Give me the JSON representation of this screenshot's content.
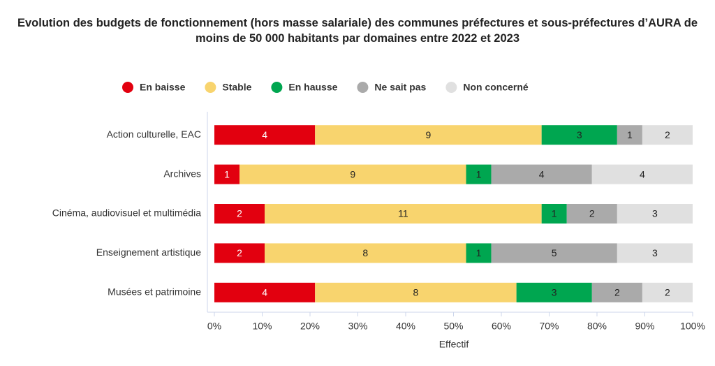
{
  "chart_data": {
    "type": "bar",
    "orientation": "horizontal",
    "stacking": "percent",
    "title": "Evolution des budgets de fonctionnement (hors masse salariale) des communes préfectures et sous-préfectures d’AURA de moins de 50 000 habitants par domaines entre 2022 et 2023",
    "x_label": "Effectif",
    "categories": [
      "Action culturelle, EAC",
      "Archives",
      "Cinéma, audiovisuel et multimédia",
      "Enseignement artistique",
      "Musées et patrimoine"
    ],
    "series": [
      {
        "name": "En baisse",
        "color": "#e2000f",
        "values": [
          4,
          1,
          2,
          2,
          4
        ]
      },
      {
        "name": "Stable",
        "color": "#f8d46e",
        "values": [
          9,
          9,
          11,
          8,
          8
        ]
      },
      {
        "name": "En hausse",
        "color": "#00a650",
        "values": [
          3,
          1,
          1,
          1,
          3
        ]
      },
      {
        "name": "Ne sait pas",
        "color": "#aaaaaa",
        "values": [
          1,
          4,
          2,
          5,
          2
        ]
      },
      {
        "name": "Non concerné",
        "color": "#e0e0e0",
        "values": [
          2,
          4,
          3,
          3,
          2
        ]
      }
    ],
    "xlim": [
      0,
      100
    ],
    "xticks": [
      {
        "value": 0,
        "label": "0%"
      },
      {
        "value": 10,
        "label": "10%"
      },
      {
        "value": 20,
        "label": "20%"
      },
      {
        "value": 30,
        "label": "30%"
      },
      {
        "value": 40,
        "label": "40%"
      },
      {
        "value": 50,
        "label": "50%"
      },
      {
        "value": 60,
        "label": "60%"
      },
      {
        "value": 70,
        "label": "70%"
      },
      {
        "value": 80,
        "label": "80%"
      },
      {
        "value": 90,
        "label": "90%"
      },
      {
        "value": 100,
        "label": "100%"
      }
    ],
    "legend_position": "top"
  }
}
